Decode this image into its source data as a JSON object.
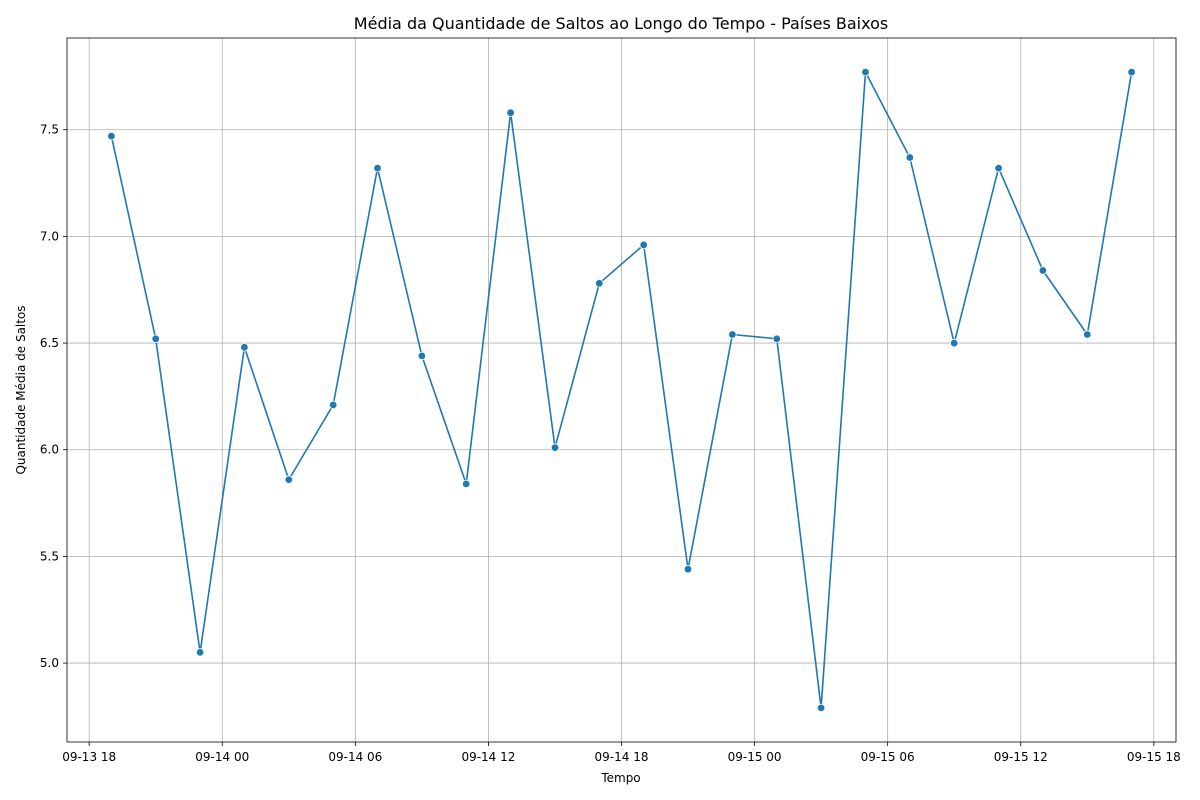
{
  "chart_data": {
    "type": "line",
    "title": "Média da Quantidade de Saltos ao Longo do Tempo - Países Baixos",
    "xlabel": "Tempo",
    "ylabel": "Quantidade Média de Saltos",
    "x_axis": {
      "kind": "datetime",
      "range": [
        "2024-09-13T17:00",
        "2024-09-15T19:00"
      ],
      "ticks": [
        {
          "value": "2024-09-13T18:00",
          "label": "09-13 18"
        },
        {
          "value": "2024-09-14T00:00",
          "label": "09-14 00"
        },
        {
          "value": "2024-09-14T06:00",
          "label": "09-14 06"
        },
        {
          "value": "2024-09-14T12:00",
          "label": "09-14 12"
        },
        {
          "value": "2024-09-14T18:00",
          "label": "09-14 18"
        },
        {
          "value": "2024-09-15T00:00",
          "label": "09-15 00"
        },
        {
          "value": "2024-09-15T06:00",
          "label": "09-15 06"
        },
        {
          "value": "2024-09-15T12:00",
          "label": "09-15 12"
        },
        {
          "value": "2024-09-15T18:00",
          "label": "09-15 18"
        }
      ]
    },
    "y_axis": {
      "range": [
        4.63,
        7.93
      ],
      "ticks": [
        {
          "value": 5.0,
          "label": "5.0"
        },
        {
          "value": 5.5,
          "label": "5.5"
        },
        {
          "value": 6.0,
          "label": "6.0"
        },
        {
          "value": 6.5,
          "label": "6.5"
        },
        {
          "value": 7.0,
          "label": "7.0"
        },
        {
          "value": 7.5,
          "label": "7.5"
        }
      ]
    },
    "grid": true,
    "series": [
      {
        "color": "#1f77b4",
        "marker": "circle",
        "points": [
          {
            "x": "2024-09-13T19:00",
            "y": 7.47
          },
          {
            "x": "2024-09-13T21:00",
            "y": 6.52
          },
          {
            "x": "2024-09-13T23:00",
            "y": 5.05
          },
          {
            "x": "2024-09-14T01:00",
            "y": 6.48
          },
          {
            "x": "2024-09-14T03:00",
            "y": 5.86
          },
          {
            "x": "2024-09-14T05:00",
            "y": 6.21
          },
          {
            "x": "2024-09-14T07:00",
            "y": 7.32
          },
          {
            "x": "2024-09-14T09:00",
            "y": 6.44
          },
          {
            "x": "2024-09-14T11:00",
            "y": 5.84
          },
          {
            "x": "2024-09-14T13:00",
            "y": 7.58
          },
          {
            "x": "2024-09-14T15:00",
            "y": 6.01
          },
          {
            "x": "2024-09-14T17:00",
            "y": 6.78
          },
          {
            "x": "2024-09-14T19:00",
            "y": 6.96
          },
          {
            "x": "2024-09-14T21:00",
            "y": 5.44
          },
          {
            "x": "2024-09-14T23:00",
            "y": 6.54
          },
          {
            "x": "2024-09-15T01:00",
            "y": 6.52
          },
          {
            "x": "2024-09-15T03:00",
            "y": 4.79
          },
          {
            "x": "2024-09-15T05:00",
            "y": 7.77
          },
          {
            "x": "2024-09-15T07:00",
            "y": 7.37
          },
          {
            "x": "2024-09-15T09:00",
            "y": 6.5
          },
          {
            "x": "2024-09-15T11:00",
            "y": 7.32
          },
          {
            "x": "2024-09-15T13:00",
            "y": 6.84
          },
          {
            "x": "2024-09-15T15:00",
            "y": 6.54
          },
          {
            "x": "2024-09-15T17:00",
            "y": 7.77
          }
        ]
      }
    ]
  }
}
